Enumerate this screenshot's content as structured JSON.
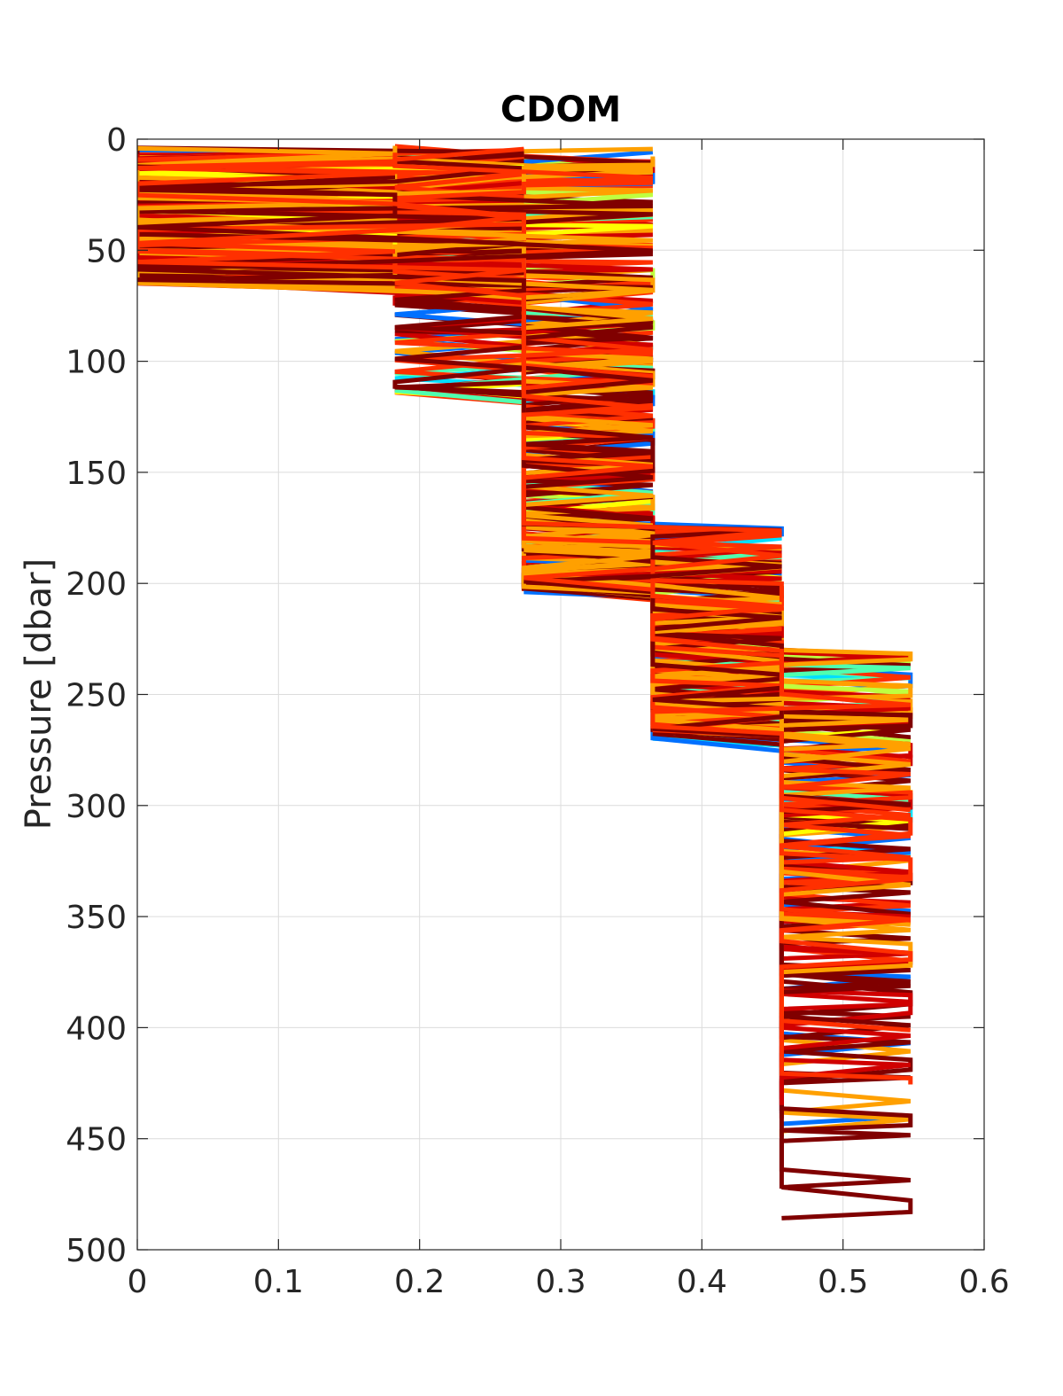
{
  "chart_data": {
    "type": "line",
    "title": "CDOM",
    "xlabel": "",
    "ylabel": "Pressure [dbar]",
    "xlim": [
      0,
      0.6
    ],
    "ylim": [
      0,
      500
    ],
    "y_reversed": true,
    "grid": true,
    "legend": "none",
    "xticks": [
      "0",
      "0.1",
      "0.2",
      "0.3",
      "0.4",
      "0.5",
      "0.6"
    ],
    "yticks": [
      "0",
      "50",
      "100",
      "150",
      "200",
      "250",
      "300",
      "350",
      "400",
      "450",
      "500"
    ],
    "colormap": [
      "#00008f",
      "#0000ff",
      "#0070ff",
      "#00dfff",
      "#50ffaf",
      "#bfff40",
      "#ffff00",
      "#ffa000",
      "#ff3000",
      "#d00000",
      "#800000"
    ],
    "quantization_levels": [
      0,
      0.0913,
      0.1826,
      0.2739,
      0.3652,
      0.4565,
      0.5478
    ],
    "series_summary": [
      {
        "pressure_range": [
          0,
          65
        ],
        "cdom_range": [
          0,
          0.365
        ],
        "typical_cdom": 0.2
      },
      {
        "pressure_range": [
          65,
          200
        ],
        "cdom_range": [
          0.1826,
          0.3652
        ],
        "typical_cdom": 0.3
      },
      {
        "pressure_range": [
          170,
          270
        ],
        "cdom_range": [
          0.3652,
          0.4565
        ],
        "typical_cdom": 0.41
      },
      {
        "pressure_range": [
          220,
          500
        ],
        "cdom_range": [
          0.4565,
          0.5478
        ],
        "typical_cdom": 0.5
      }
    ]
  }
}
